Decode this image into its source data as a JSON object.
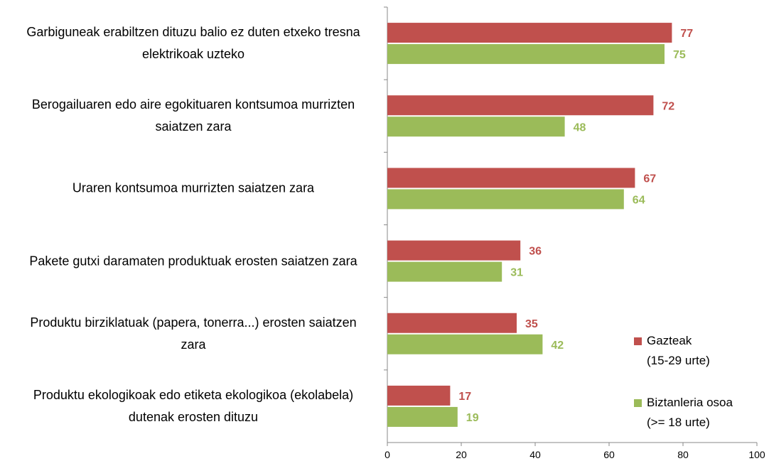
{
  "chart_data": {
    "type": "barh",
    "categories": [
      "Garbiguneak erabiltzen dituzu balio ez duten etxeko tresna elektrikoak uzteko",
      "Berogailuaren edo aire egokituaren kontsumoa murrizten saiatzen zara",
      "Uraren kontsumoa murrizten saiatzen zara",
      "Pakete gutxi daramaten produktuak erosten saiatzen zara",
      "Produktu birziklatuak (papera, tonerra...) erosten saiatzen zara",
      "Produktu ekologikoak edo etiketa ekologikoa (ekolabela) dutenak erosten dituzu"
    ],
    "series": [
      {
        "name": "Gazteak\n(15-29 urte)",
        "color": "#c0504d",
        "values": [
          77,
          72,
          67,
          36,
          35,
          17
        ]
      },
      {
        "name": "Biztanleria osoa\n(>= 18 urte)",
        "color": "#9bbb59",
        "values": [
          75,
          48,
          64,
          31,
          42,
          19
        ]
      }
    ],
    "xlim": [
      0,
      100
    ],
    "xticks": [
      0,
      20,
      40,
      60,
      80,
      100
    ],
    "legend": "right"
  }
}
